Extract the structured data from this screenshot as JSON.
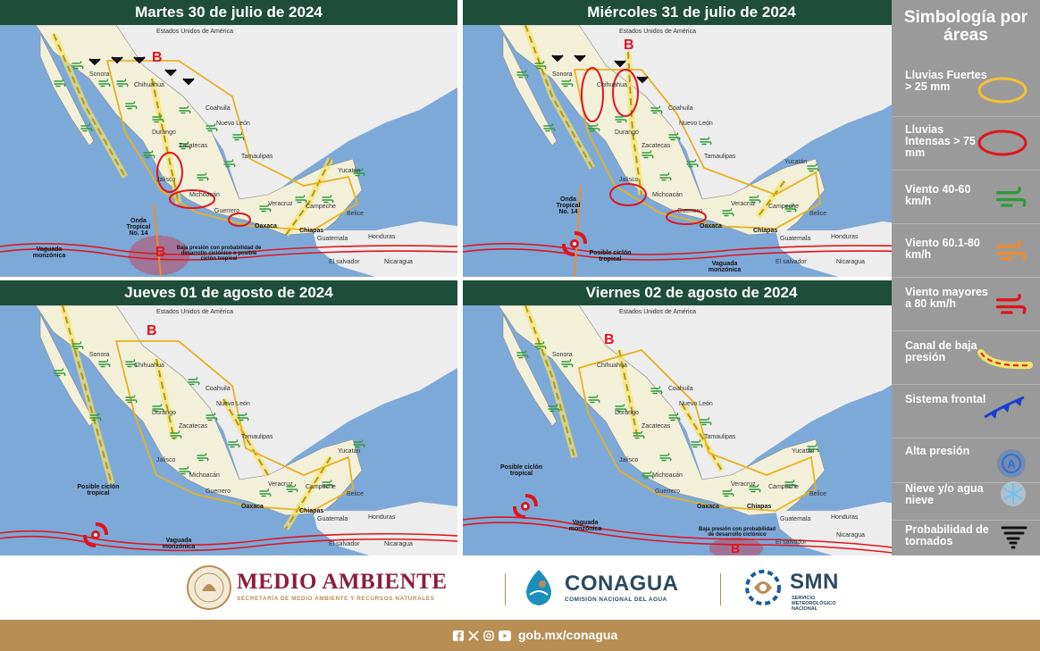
{
  "panels": [
    {
      "title": "Martes 30 de julio de 2024",
      "labels": {
        "usa": "Estados Unidos de América",
        "sonora": "Sonora",
        "chihuahua": "Chihuahua",
        "coahuila": "Coahuila",
        "nuevoleon": "Nuevo León",
        "durango": "Durango",
        "zacatecas": "Zacatecas",
        "jalisco": "Jalisco",
        "michoacan": "Michoacán",
        "guerrero": "Guerrero",
        "oaxaca": "Oaxaca",
        "chiapas": "Chiapas",
        "yucatan": "Yucatán",
        "belice": "Belice",
        "guatemala": "Guatemala",
        "honduras": "Honduras",
        "elsalvador": "El salvador",
        "nicaragua": "Nicaragua",
        "tamaulipas": "Tamaulipas",
        "veracruz": "Veracruz",
        "campeche": "Campeche"
      },
      "onda": "Onda Tropical No. 14",
      "vaguada": "Vaguada monzónica",
      "baja": "Baja presión con probabilidad de desarrollo ciclónico o posible ciclón tropical",
      "b": "B"
    },
    {
      "title": "Miércoles 31 de julio de 2024",
      "labels": {
        "usa": "Estados Unidos de América",
        "sonora": "Sonora",
        "chihuahua": "Chihuahua",
        "coahuila": "Coahuila",
        "nuevoleon": "Nuevo León",
        "durango": "Durango",
        "zacatecas": "Zacatecas",
        "jalisco": "Jalisco",
        "michoacan": "Michoacán",
        "guerrero": "Guerrero",
        "oaxaca": "Oaxaca",
        "chiapas": "Chiapas",
        "yucatan": "Yucatán",
        "belice": "Belice",
        "guatemala": "Guatemala",
        "honduras": "Honduras",
        "elsalvador": "El salvador",
        "nicaragua": "Nicaragua",
        "tamaulipas": "Tamaulipas",
        "veracruz": "Veracruz",
        "campeche": "Campeche"
      },
      "onda": "Onda Tropical No. 14",
      "vaguada": "Vaguada monzónica",
      "ciclon": "Posible ciclón tropical",
      "b": "B"
    },
    {
      "title": "Jueves 01 de agosto de 2024",
      "labels": {
        "usa": "Estados Unidos de América",
        "sonora": "Sonora",
        "chihuahua": "Chihuahua",
        "coahuila": "Coahuila",
        "nuevoleon": "Nuevo León",
        "durango": "Durango",
        "zacatecas": "Zacatecas",
        "jalisco": "Jalisco",
        "michoacan": "Michoacán",
        "guerrero": "Guerrero",
        "oaxaca": "Oaxaca",
        "chiapas": "Chiapas",
        "yucatan": "Yucatán",
        "belice": "Belice",
        "guatemala": "Guatemala",
        "honduras": "Honduras",
        "elsalvador": "El salvador",
        "nicaragua": "Nicaragua",
        "tamaulipas": "Tamaulipas",
        "veracruz": "Veracruz",
        "campeche": "Campeche"
      },
      "vaguada": "Vaguada monzónica",
      "ciclon": "Posible ciclón tropical",
      "b": "B"
    },
    {
      "title": "Viernes 02 de agosto de 2024",
      "labels": {
        "usa": "Estados Unidos de América",
        "sonora": "Sonora",
        "chihuahua": "Chihuahua",
        "coahuila": "Coahuila",
        "nuevoleon": "Nuevo León",
        "durango": "Durango",
        "zacatecas": "Zacatecas",
        "jalisco": "Jalisco",
        "michoacan": "Michoacán",
        "guerrero": "Guerrero",
        "oaxaca": "Oaxaca",
        "chiapas": "Chiapas",
        "yucatan": "Yucatán",
        "belice": "Belice",
        "guatemala": "Guatemala",
        "honduras": "Honduras",
        "elsalvador": "El salvador",
        "nicaragua": "Nicaragua",
        "tamaulipas": "Tamaulipas",
        "veracruz": "Veracruz",
        "campeche": "Campeche"
      },
      "vaguada": "Vaguada monzónica",
      "ciclon": "Posible ciclón tropical",
      "baja": "Baja presión con probabilidad de desarrollo ciclónico",
      "b": "B"
    }
  ],
  "legend": {
    "title": "Simbología por áreas",
    "items": [
      {
        "label": "Lluvias Fuertes > 25 mm",
        "icon": "yellow-ellipse-icon",
        "color": "#f2c232"
      },
      {
        "label": "Lluvias Intensas > 75 mm",
        "icon": "red-ellipse-icon",
        "color": "#e0141e"
      },
      {
        "label": "Viento 40-60 km/h",
        "icon": "green-wind-icon",
        "color": "#2e9a3a"
      },
      {
        "label": "Viento 60.1-80 km/h",
        "icon": "orange-wind-icon",
        "color": "#f08a2c"
      },
      {
        "label": "Viento mayores a 80 km/h",
        "icon": "red-wind-icon",
        "color": "#e0141e"
      },
      {
        "label": "Canal de baja presión",
        "icon": "low-pressure-channel-icon",
        "color": "#f2d43a"
      },
      {
        "label": "Sistema frontal",
        "icon": "front-system-icon",
        "color": "#1b3fd1"
      },
      {
        "label": "Alta presión",
        "icon": "high-pressure-icon",
        "color": "#2f6fd6"
      },
      {
        "label": "Nieve y/o agua nieve",
        "icon": "snowflake-icon",
        "color": "#6ec2f0"
      },
      {
        "label": "Probabilidad de tornados",
        "icon": "tornado-icon",
        "color": "#111111"
      }
    ]
  },
  "footer": {
    "medio_title": "MEDIO AMBIENTE",
    "medio_sub": "SECRETARÍA DE MEDIO AMBIENTE Y RECURSOS NATURALES",
    "conagua_title": "CONAGUA",
    "conagua_sub": "COMISIÓN NACIONAL DEL AGUA",
    "smn_title": "SMN",
    "smn_sub1": "SERVICIO",
    "smn_sub2": "METEOROLÓGICO",
    "smn_sub3": "NACIONAL",
    "url": "gob.mx/conagua"
  },
  "colors": {
    "header": "#1e4d3a",
    "sea": "#7da9d8",
    "land": "#ededed",
    "mexico": "#f3f0da",
    "sidebar": "#9a9a9a",
    "bottom": "#b88e55",
    "medio": "#8c1d3d"
  }
}
